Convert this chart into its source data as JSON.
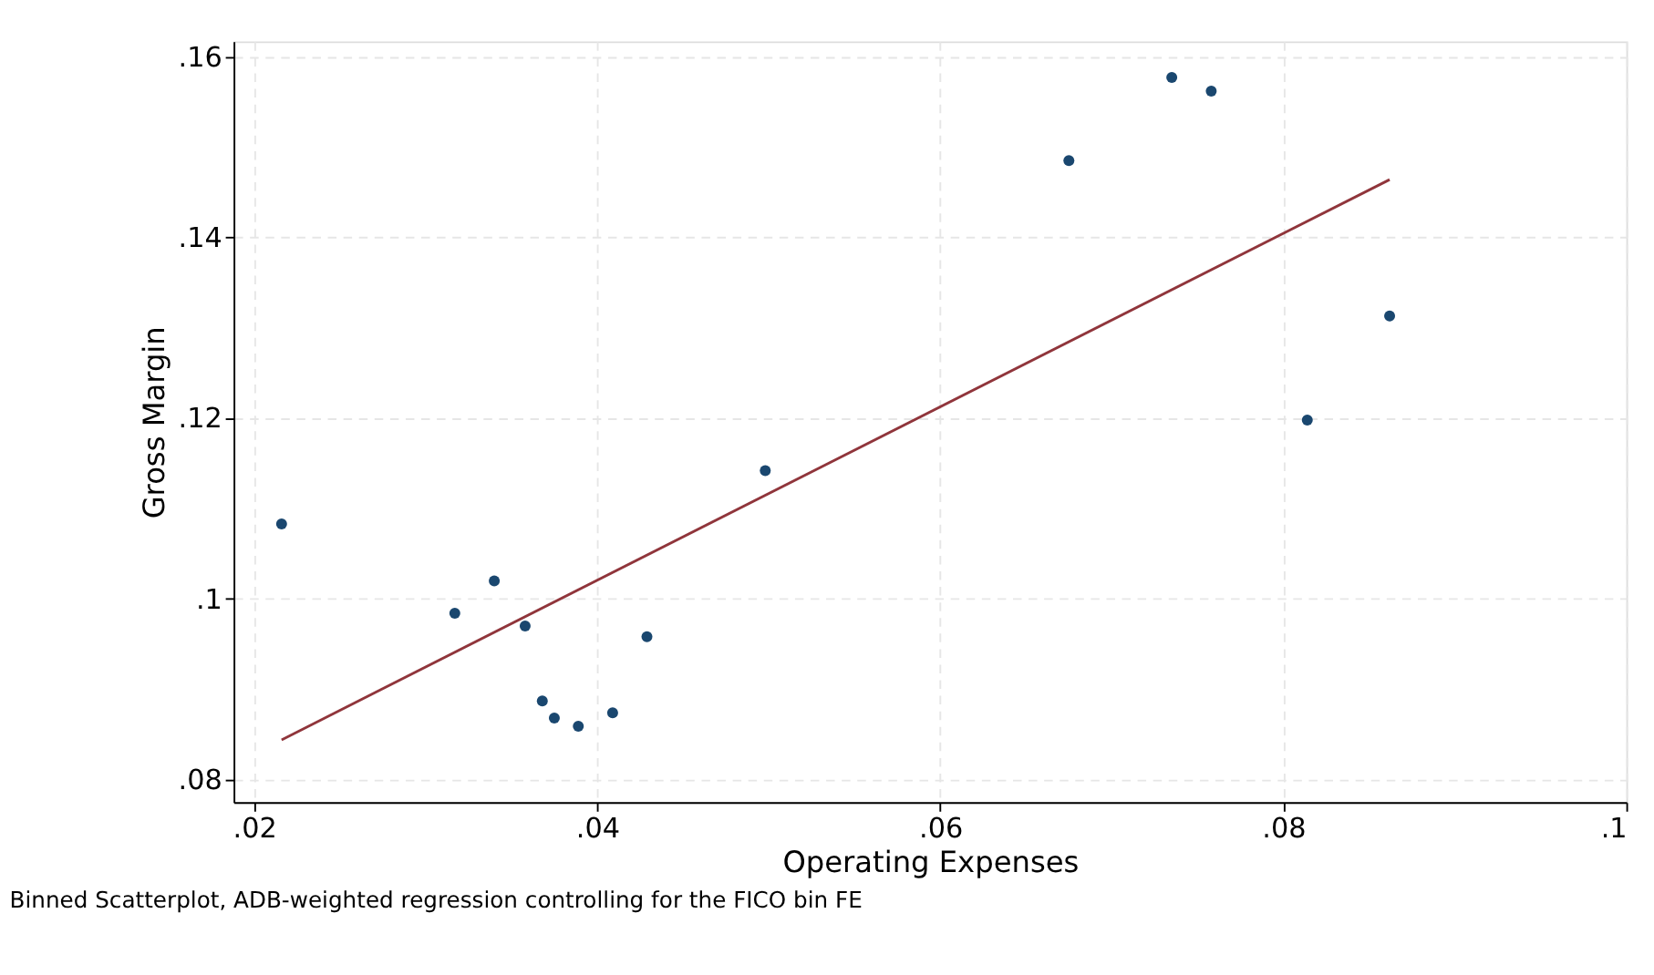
{
  "chart_data": {
    "type": "scatter",
    "xlabel": "Operating Expenses",
    "ylabel": "Gross Margin",
    "annotations": [
      "Binned Scatterplot, ADB-weighted regression controlling for the FICO bin FE"
    ],
    "series": [
      {
        "color": "#1a476f",
        "marker": "circle",
        "x": [
          0.0216,
          0.0317,
          0.034,
          0.0358,
          0.0368,
          0.0375,
          0.0389,
          0.0409,
          0.0429,
          0.0498,
          0.0675,
          0.0735,
          0.0758,
          0.0814,
          0.0862
        ],
        "values": [
          0.1083,
          0.0984,
          0.102,
          0.097,
          0.0887,
          0.0868,
          0.0859,
          0.0874,
          0.0958,
          0.1142,
          0.1485,
          0.1577,
          0.1562,
          0.1198,
          0.1313
        ]
      },
      {
        "type": "line",
        "color": "#90353b",
        "x": [
          0.0216,
          0.0862
        ],
        "values": [
          0.0844,
          0.1464
        ]
      }
    ],
    "line_style": "solid",
    "grid": true,
    "xlim": [
      0.0188,
      0.1
    ],
    "ylim": [
      0.0775,
      0.1617
    ],
    "xticks": [
      {
        "value": 0.02,
        "label": ".02"
      },
      {
        "value": 0.04,
        "label": ".04"
      },
      {
        "value": 0.06,
        "label": ".06"
      },
      {
        "value": 0.08,
        "label": ".08"
      },
      {
        "value": 0.1,
        "label": ".1"
      }
    ],
    "yticks": [
      {
        "value": 0.08,
        "label": ".08"
      },
      {
        "value": 0.1,
        "label": ".1"
      },
      {
        "value": 0.12,
        "label": ".12"
      },
      {
        "value": 0.14,
        "label": ".14"
      },
      {
        "value": 0.16,
        "label": ".16"
      }
    ]
  }
}
